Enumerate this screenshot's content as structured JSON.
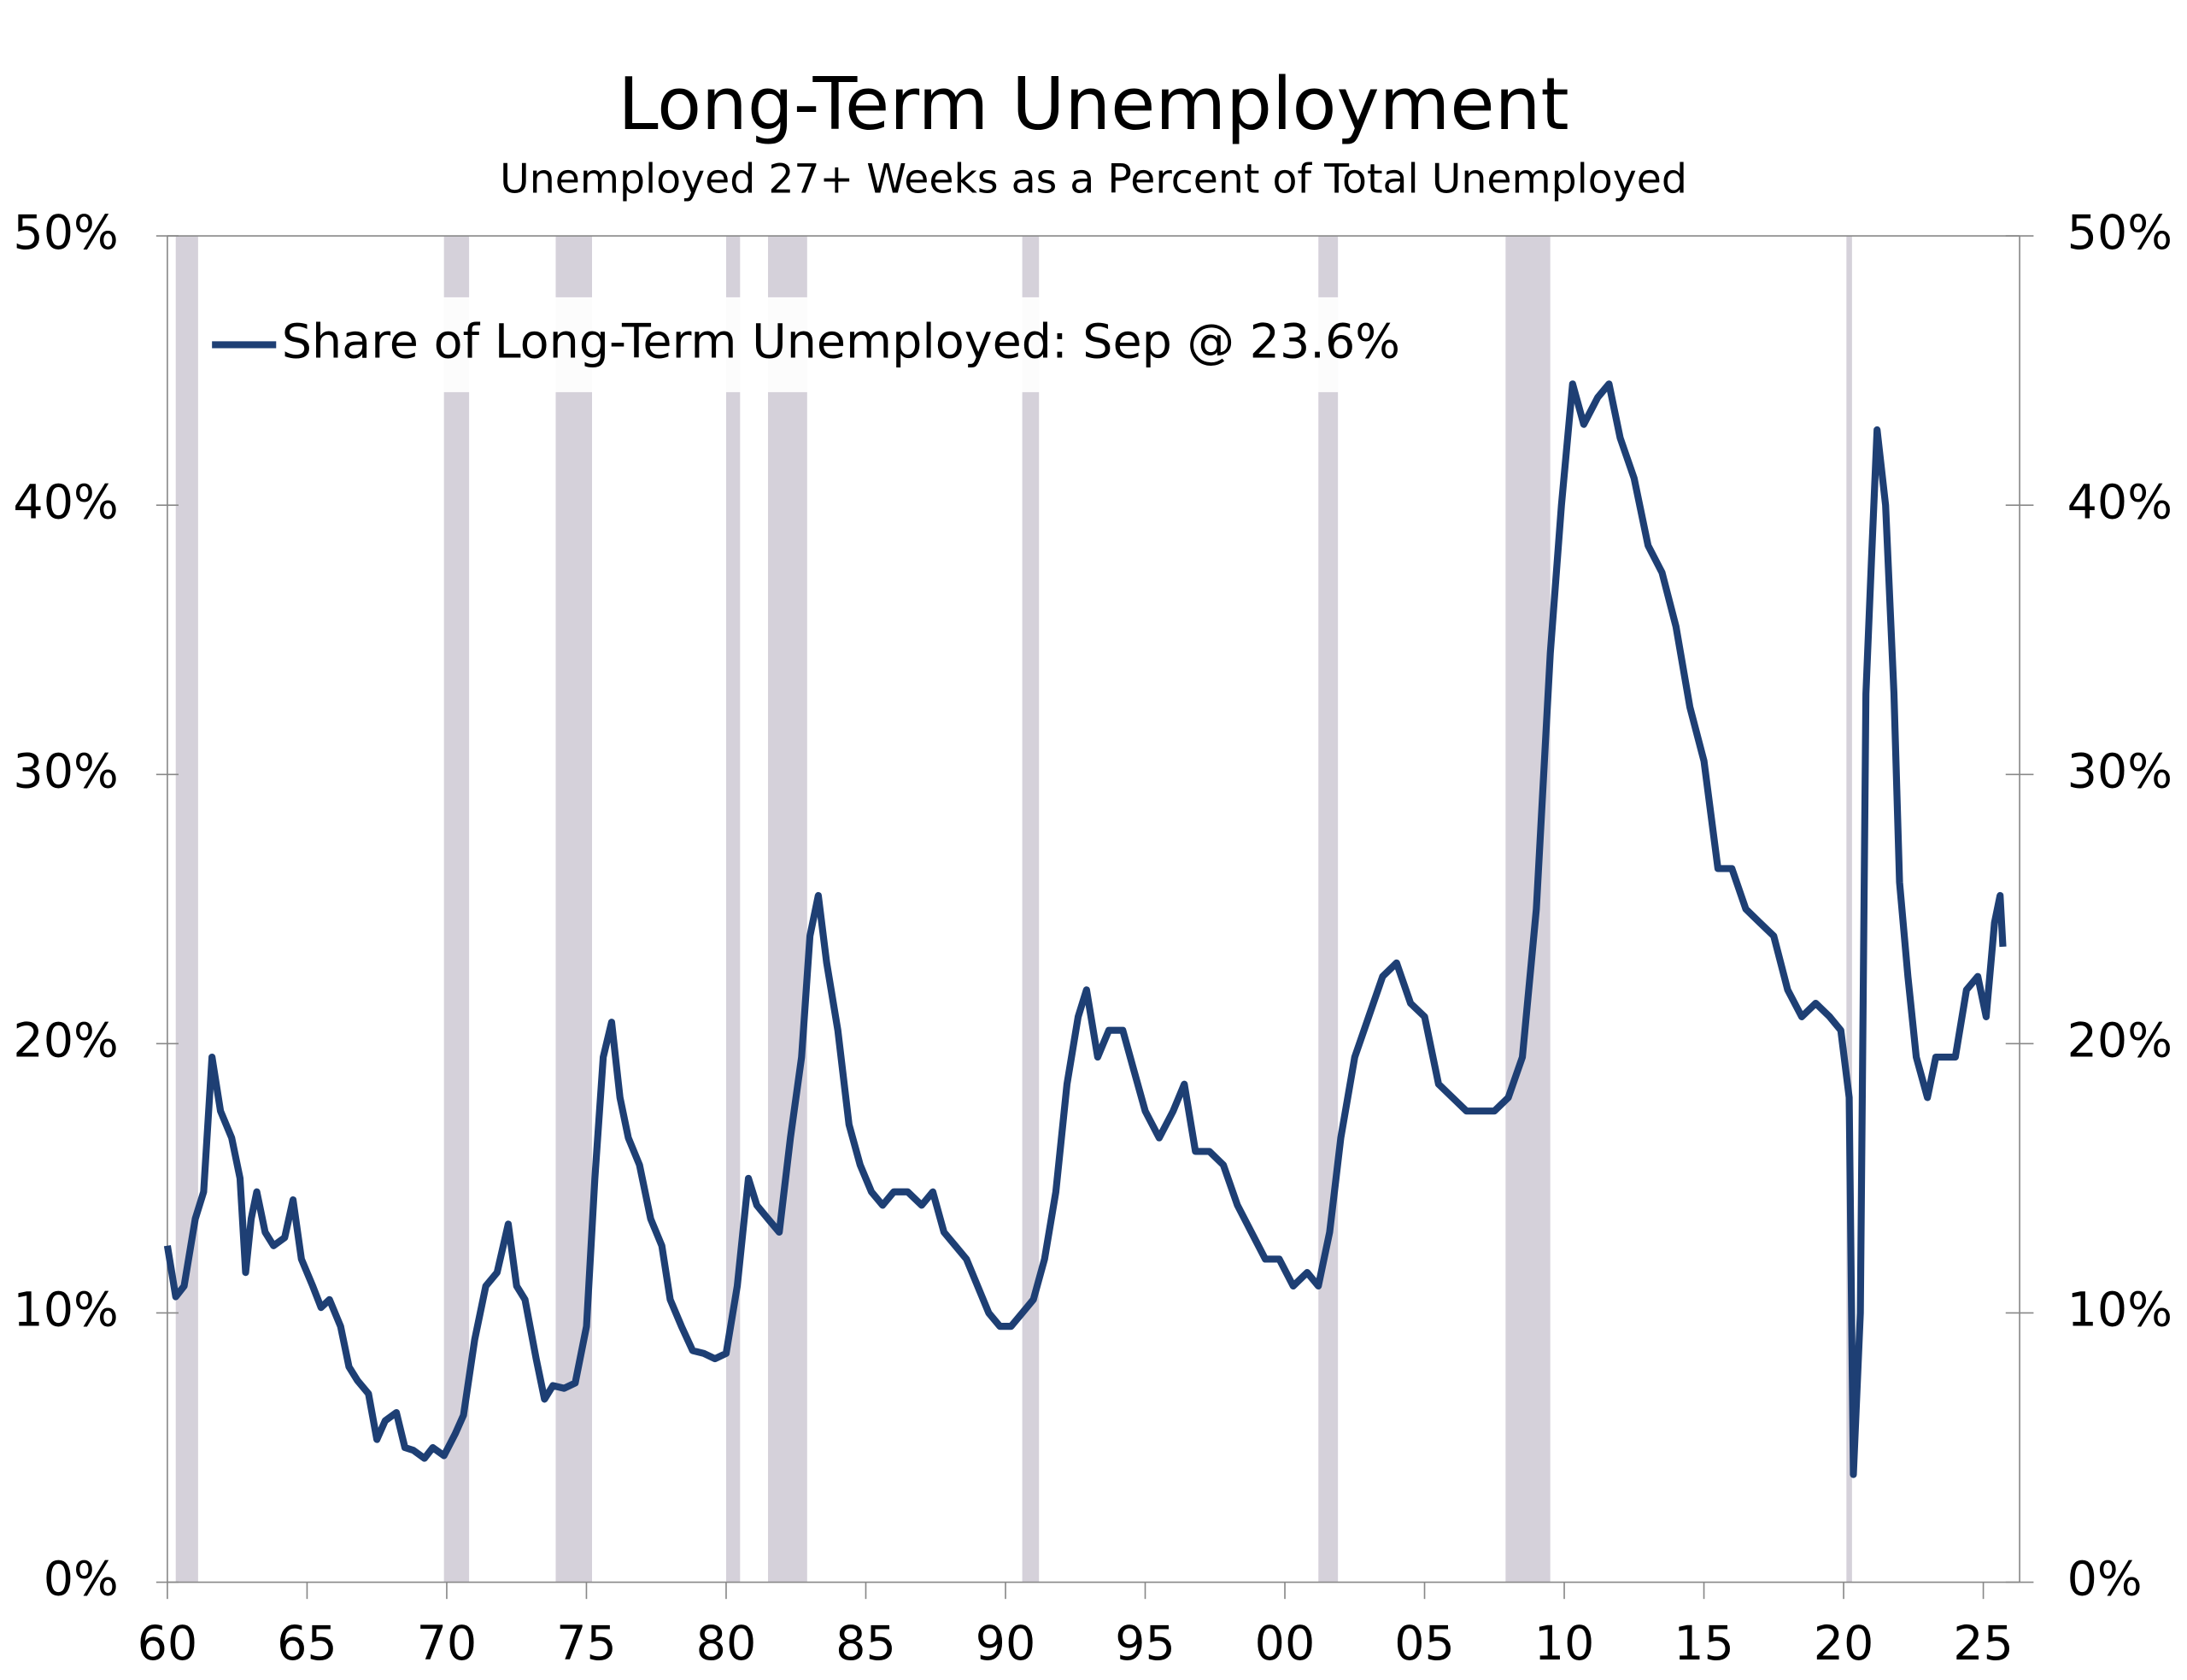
{
  "chart_data": {
    "type": "line",
    "title": "Long-Term Unemployment",
    "subtitle": "Unemployed 27+ Weeks  as a Percent of Total Unemployed",
    "xlim": [
      1960,
      2026.3
    ],
    "xticks": [
      {
        "value": 1960,
        "label": "60"
      },
      {
        "value": 1965,
        "label": "65"
      },
      {
        "value": 1970,
        "label": "70"
      },
      {
        "value": 1975,
        "label": "75"
      },
      {
        "value": 1980,
        "label": "80"
      },
      {
        "value": 1985,
        "label": "85"
      },
      {
        "value": 1990,
        "label": "90"
      },
      {
        "value": 1995,
        "label": "95"
      },
      {
        "value": 2000,
        "label": "00"
      },
      {
        "value": 2005,
        "label": "05"
      },
      {
        "value": 2010,
        "label": "10"
      },
      {
        "value": 2015,
        "label": "15"
      },
      {
        "value": 2020,
        "label": "20"
      },
      {
        "value": 2025,
        "label": "25"
      }
    ],
    "ylim": [
      0,
      50
    ],
    "yticks": [
      {
        "value": 0,
        "label": "0%"
      },
      {
        "value": 10,
        "label": "10%"
      },
      {
        "value": 20,
        "label": "20%"
      },
      {
        "value": 30,
        "label": "30%"
      },
      {
        "value": 40,
        "label": "40%"
      },
      {
        "value": 50,
        "label": "50%"
      }
    ],
    "y2lim": [
      0,
      50
    ],
    "y2ticks": [
      {
        "value": 0,
        "label": "0%"
      },
      {
        "value": 10,
        "label": "10%"
      },
      {
        "value": 20,
        "label": "20%"
      },
      {
        "value": 30,
        "label": "30%"
      },
      {
        "value": 40,
        "label": "40%"
      },
      {
        "value": 50,
        "label": "50%"
      }
    ],
    "legend": "upper left",
    "recession_color": "#d5d1da",
    "recessions": [
      [
        1960.3,
        1961.1
      ],
      [
        1969.9,
        1970.8
      ],
      [
        1973.9,
        1975.2
      ],
      [
        1980.0,
        1980.5
      ],
      [
        1981.5,
        1982.9
      ],
      [
        1990.6,
        1991.2
      ],
      [
        2001.2,
        2001.9
      ],
      [
        2007.9,
        2009.5
      ],
      [
        2020.1,
        2020.3
      ]
    ],
    "x": [
      1960.0,
      1960.3,
      1960.6,
      1961.0,
      1961.3,
      1961.6,
      1961.9,
      1962.3,
      1962.6,
      1962.8,
      1963.0,
      1963.2,
      1963.5,
      1963.8,
      1964.2,
      1964.5,
      1964.8,
      1965.2,
      1965.5,
      1965.8,
      1966.2,
      1966.5,
      1966.8,
      1967.2,
      1967.5,
      1967.8,
      1968.2,
      1968.5,
      1968.8,
      1969.2,
      1969.5,
      1969.9,
      1970.3,
      1970.6,
      1971.0,
      1971.4,
      1971.8,
      1972.2,
      1972.5,
      1972.8,
      1973.2,
      1973.5,
      1973.8,
      1974.2,
      1974.6,
      1975.0,
      1975.3,
      1975.6,
      1975.9,
      1976.2,
      1976.5,
      1976.9,
      1977.3,
      1977.7,
      1978.0,
      1978.4,
      1978.8,
      1979.2,
      1979.6,
      1980.0,
      1980.4,
      1980.8,
      1981.1,
      1981.5,
      1981.9,
      1982.3,
      1982.7,
      1983.0,
      1983.3,
      1983.6,
      1984.0,
      1984.4,
      1984.8,
      1985.2,
      1985.6,
      1986.0,
      1986.5,
      1987.0,
      1987.4,
      1987.8,
      1988.2,
      1988.6,
      1989.0,
      1989.4,
      1989.8,
      1990.2,
      1990.6,
      1991.0,
      1991.4,
      1991.8,
      1992.2,
      1992.6,
      1992.9,
      1993.3,
      1993.7,
      1994.2,
      1994.6,
      1995.0,
      1995.5,
      1996.0,
      1996.4,
      1996.8,
      1997.3,
      1997.8,
      1998.3,
      1998.8,
      1999.3,
      1999.8,
      2000.3,
      2000.8,
      2001.2,
      2001.6,
      2002.0,
      2002.5,
      2003.0,
      2003.5,
      2004.0,
      2004.5,
      2005.0,
      2005.5,
      2006.0,
      2006.5,
      2007.0,
      2007.5,
      2008.0,
      2008.5,
      2009.0,
      2009.5,
      2009.9,
      2010.3,
      2010.7,
      2011.2,
      2011.6,
      2012.0,
      2012.5,
      2013.0,
      2013.5,
      2014.0,
      2014.5,
      2015.0,
      2015.5,
      2016.0,
      2016.5,
      2017.0,
      2017.5,
      2018.0,
      2018.5,
      2019.0,
      2019.5,
      2019.9,
      2020.2,
      2020.35,
      2020.6,
      2020.8,
      2021.0,
      2021.2,
      2021.5,
      2021.8,
      2022.0,
      2022.3,
      2022.6,
      2023.0,
      2023.3,
      2023.7,
      2024.0,
      2024.4,
      2024.8,
      2025.1,
      2025.4,
      2025.6,
      2025.7
    ],
    "series": [
      {
        "name": "Share of Long-Term Unemployed: Sep @ 23.6%",
        "color": "#1e3f74",
        "values": [
          12.5,
          10.6,
          11.0,
          13.5,
          14.5,
          19.5,
          17.5,
          16.5,
          15.0,
          11.5,
          13.5,
          14.5,
          13.0,
          12.5,
          12.8,
          14.2,
          12.0,
          11.0,
          10.2,
          10.5,
          9.5,
          8.0,
          7.5,
          7.0,
          5.3,
          6.0,
          6.3,
          5.0,
          4.9,
          4.6,
          5.0,
          4.7,
          5.5,
          6.2,
          9.0,
          11.0,
          11.5,
          13.3,
          11.0,
          10.5,
          8.3,
          6.8,
          7.3,
          7.2,
          7.4,
          9.5,
          15.0,
          19.5,
          20.8,
          18.0,
          16.5,
          15.5,
          13.5,
          12.5,
          10.5,
          9.5,
          8.6,
          8.5,
          8.3,
          8.5,
          11.0,
          15.0,
          14.0,
          13.5,
          13.0,
          16.5,
          19.5,
          24.0,
          25.5,
          23.0,
          20.5,
          17.0,
          15.5,
          14.5,
          14.0,
          14.5,
          14.5,
          14.0,
          14.5,
          13.0,
          12.5,
          12.0,
          11.0,
          10.0,
          9.5,
          9.5,
          10.0,
          10.5,
          12.0,
          14.5,
          18.5,
          21.0,
          22.0,
          19.5,
          20.5,
          20.5,
          19.0,
          17.5,
          16.5,
          17.5,
          18.5,
          16.0,
          16.0,
          15.5,
          14.0,
          13.0,
          12.0,
          12.0,
          11.0,
          11.5,
          11.0,
          13.0,
          16.5,
          19.5,
          21.0,
          22.5,
          23.0,
          21.5,
          21.0,
          18.5,
          18.0,
          17.5,
          17.5,
          17.5,
          18.0,
          19.5,
          25.0,
          34.5,
          40.0,
          44.5,
          43.0,
          44.0,
          44.5,
          42.5,
          41.0,
          38.5,
          37.5,
          35.5,
          32.5,
          30.5,
          26.5,
          26.5,
          25.0,
          24.5,
          24.0,
          22.0,
          21.0,
          21.5,
          21.0,
          20.5,
          18.0,
          4.0,
          10.0,
          33.0,
          38.0,
          42.8,
          40.0,
          33.0,
          26.0,
          22.5,
          19.5,
          18.0,
          19.5,
          19.5,
          19.5,
          22.0,
          22.5,
          21.0,
          24.5,
          25.5,
          23.6
        ]
      }
    ]
  }
}
